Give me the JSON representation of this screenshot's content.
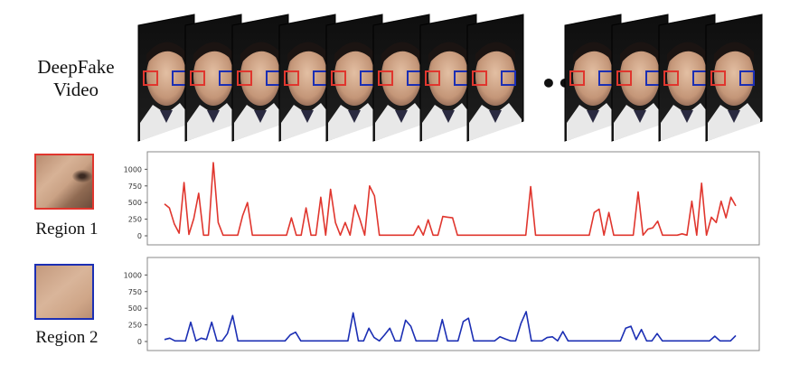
{
  "video_label": [
    "DeepFake",
    "Video"
  ],
  "ellipsis": "•••",
  "region1_label": "Region 1",
  "region2_label": "Region 2",
  "colors": {
    "region1": "#e0362e",
    "region2": "#1c2fb4",
    "frame": "#1a1a1a"
  },
  "chart_data": [
    {
      "type": "line",
      "series_color": "#e0362e",
      "ylim": [
        0,
        1100
      ],
      "yticks": [
        0,
        250,
        500,
        750,
        1000
      ],
      "values": [
        480,
        420,
        180,
        40,
        800,
        20,
        260,
        640,
        10,
        10,
        1100,
        200,
        10,
        10,
        10,
        10,
        300,
        500,
        10,
        10,
        10,
        10,
        10,
        10,
        10,
        10,
        270,
        10,
        10,
        420,
        10,
        10,
        580,
        10,
        700,
        200,
        10,
        200,
        10,
        460,
        250,
        10,
        750,
        600,
        10,
        10,
        10,
        10,
        10,
        10,
        10,
        10,
        150,
        10,
        240,
        10,
        10,
        290,
        280,
        270,
        10,
        10,
        10,
        10,
        10,
        10,
        10,
        10,
        10,
        10,
        10,
        10,
        10,
        10,
        10,
        740,
        10,
        10,
        10,
        10,
        10,
        10,
        10,
        10,
        10,
        10,
        10,
        10,
        350,
        400,
        10,
        350,
        10,
        10,
        10,
        10,
        10,
        660,
        10,
        100,
        120,
        220,
        10,
        10,
        10,
        10,
        30,
        10,
        520,
        10,
        790,
        10,
        280,
        200,
        520,
        270,
        580,
        450
      ]
    },
    {
      "type": "line",
      "series_color": "#1c2fb4",
      "ylim": [
        0,
        1100
      ],
      "yticks": [
        0,
        250,
        500,
        750,
        1000
      ],
      "values": [
        30,
        50,
        10,
        10,
        10,
        290,
        10,
        50,
        30,
        290,
        10,
        10,
        120,
        390,
        10,
        10,
        10,
        10,
        10,
        10,
        10,
        10,
        10,
        10,
        100,
        140,
        10,
        10,
        10,
        10,
        10,
        10,
        10,
        10,
        10,
        10,
        430,
        10,
        10,
        200,
        60,
        10,
        100,
        200,
        10,
        10,
        320,
        230,
        10,
        10,
        10,
        10,
        10,
        330,
        10,
        10,
        10,
        300,
        350,
        10,
        10,
        10,
        10,
        10,
        70,
        40,
        10,
        10,
        270,
        450,
        10,
        10,
        10,
        60,
        70,
        10,
        150,
        10,
        10,
        10,
        10,
        10,
        10,
        10,
        10,
        10,
        10,
        10,
        200,
        230,
        30,
        180,
        10,
        10,
        120,
        10,
        10,
        10,
        10,
        10,
        10,
        10,
        10,
        10,
        10,
        80,
        10,
        10,
        10,
        90
      ]
    }
  ]
}
